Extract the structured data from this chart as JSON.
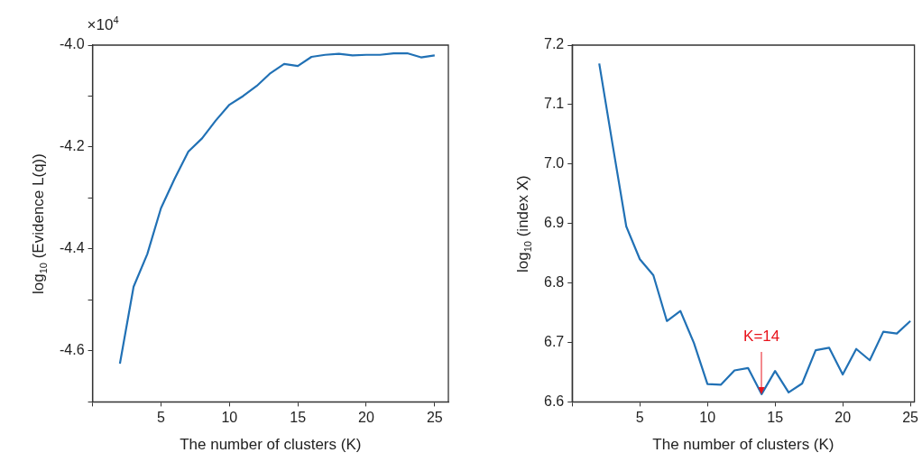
{
  "chart_data": [
    {
      "type": "line",
      "xlabel": "The number of clusters (K)",
      "ylabel": "log$_{10}$ (Evidence L(q))",
      "annotations": [
        "×10$^{4}$"
      ],
      "x": [
        2,
        3,
        4,
        5,
        6,
        7,
        8,
        9,
        10,
        11,
        12,
        13,
        14,
        15,
        16,
        17,
        18,
        19,
        20,
        21,
        22,
        23,
        24,
        25
      ],
      "series": [
        {
          "color": "#2171b5",
          "values": [
            -4.625,
            -4.474,
            -4.41,
            -4.32,
            -4.262,
            -4.209,
            -4.183,
            -4.148,
            -4.117,
            -4.1,
            -4.08,
            -4.055,
            -4.037,
            -4.041,
            -4.023,
            -4.019,
            -4.017,
            -4.02,
            -4.019,
            -4.019,
            -4.016,
            -4.016,
            -4.024,
            -4.02
          ]
        }
      ],
      "xlim": [
        0,
        26
      ],
      "xticks": [
        {
          "value": 0,
          "label": null
        },
        5,
        10,
        15,
        20,
        25
      ],
      "ylim": [
        -4.7,
        -4.0
      ],
      "yticks": [
        {
          "value": -4.7,
          "label": null
        },
        -4.6,
        {
          "value": -4.5,
          "label": null
        },
        -4.4,
        {
          "value": -4.3,
          "label": null
        },
        -4.2,
        {
          "value": -4.1,
          "label": null
        },
        {
          "value": -4.0,
          "label": "-4.0"
        }
      ],
      "grid": false,
      "legend": false,
      "marker": "none",
      "line_style": "solid"
    },
    {
      "type": "line",
      "xlabel": "The number of clusters (K)",
      "ylabel": "log$_{10}$ (index X)",
      "annotations": [
        {
          "text": "K=14",
          "x": 14,
          "y": 6.613
        }
      ],
      "x": [
        2,
        3,
        4,
        5,
        6,
        7,
        8,
        9,
        10,
        11,
        12,
        13,
        14,
        15,
        16,
        17,
        18,
        19,
        20,
        21,
        22,
        23,
        24,
        25
      ],
      "series": [
        {
          "color": "#2171b5",
          "values": [
            7.169,
            7.031,
            6.895,
            6.84,
            6.813,
            6.736,
            6.753,
            6.699,
            6.63,
            6.629,
            6.653,
            6.657,
            6.613,
            6.652,
            6.616,
            6.631,
            6.687,
            6.691,
            6.646,
            6.689,
            6.67,
            6.718,
            6.715,
            6.736
          ]
        }
      ],
      "xlim": [
        0,
        25.3
      ],
      "xticks": [
        {
          "value": 0,
          "label": null
        },
        5,
        10,
        15,
        20,
        25
      ],
      "ylim": [
        6.6,
        7.2
      ],
      "yticks": [
        6.6,
        6.7,
        6.8,
        6.9,
        {
          "value": 7.0,
          "label": "7.0"
        },
        7.1,
        7.2
      ],
      "grid": false,
      "legend": false,
      "marker": "none",
      "line_style": "solid"
    }
  ]
}
